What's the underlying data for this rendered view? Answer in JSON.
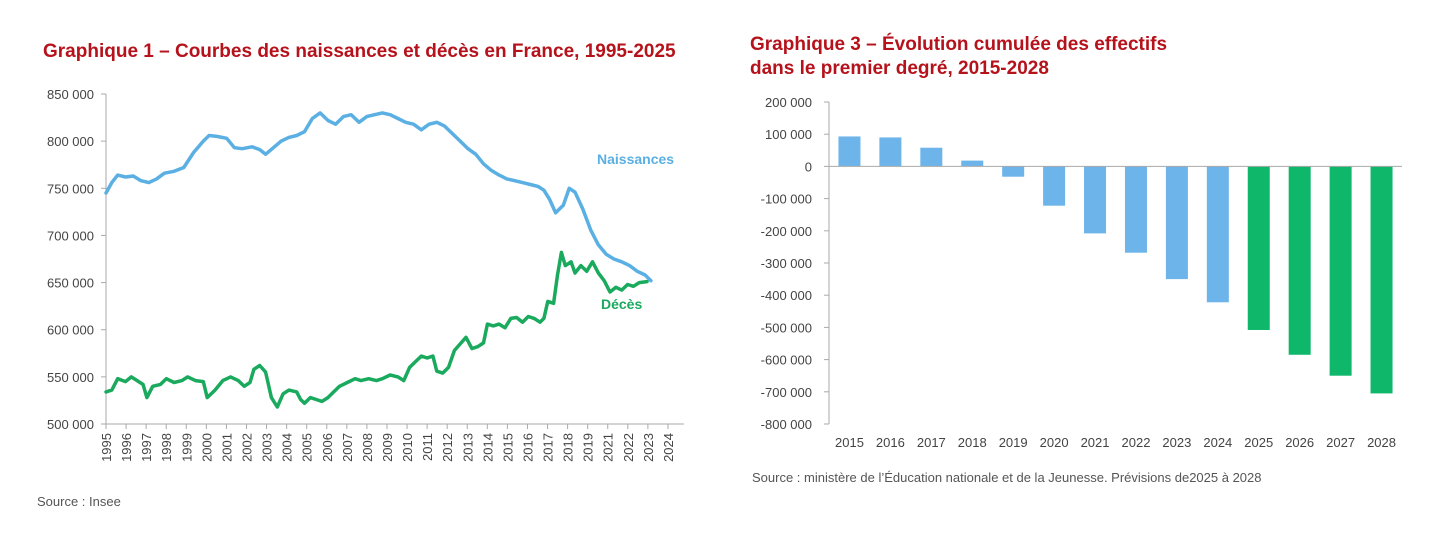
{
  "chart1": {
    "title": "Graphique 1 – Courbes des naissances et décès en France, 1995-2025",
    "source": "Source : Insee",
    "y_ticks": [
      "850 000",
      "800 000",
      "750 000",
      "700 000",
      "650 000",
      "600 000",
      "550 000",
      "500 000"
    ],
    "x_ticks": [
      "1995",
      "1996",
      "1997",
      "1998",
      "1999",
      "2000",
      "2001",
      "2002",
      "2003",
      "2004",
      "2005",
      "2006",
      "2007",
      "2008",
      "2009",
      "2010",
      "2011",
      "2012",
      "2013",
      "2014",
      "2015",
      "2016",
      "2017",
      "2018",
      "2019",
      "2021",
      "2022",
      "2023",
      "2024"
    ],
    "colors": {
      "naissances": "#5aafe3",
      "deces": "#1aaa5e",
      "axis": "#aaaaaa",
      "tick_text": "#444444"
    }
  },
  "chart3": {
    "title_line1": "Graphique 3 – Évolution cumulée des effectifs",
    "title_line2": "dans le premier degré, 2015-2028",
    "source": "Source : ministère de l’Éducation nationale et de la Jeunesse. Prévisions de2025 à 2028",
    "y_ticks": [
      "200 000",
      "100 000",
      "0",
      "-100 000",
      "-200 000",
      "-300 000",
      "-400 000",
      "-500 000",
      "-600 000",
      "-700 000",
      "-800 000"
    ],
    "colors": {
      "observed": "#6cb4ea",
      "forecast": "#0fb76b"
    }
  },
  "chart_data": [
    {
      "type": "line",
      "title": "Graphique 1 – Courbes des naissances et décès en France, 1995-2025",
      "xlabel": "",
      "ylabel": "",
      "ylim": [
        500000,
        850000
      ],
      "xlim": [
        1995,
        2024.7
      ],
      "grid": false,
      "series": [
        {
          "name": "Naissances",
          "points": [
            [
              1995.0,
              745000
            ],
            [
              1995.3,
              756000
            ],
            [
              1995.6,
              764000
            ],
            [
              1996.0,
              762000
            ],
            [
              1996.4,
              763000
            ],
            [
              1996.8,
              758000
            ],
            [
              1997.2,
              756000
            ],
            [
              1997.6,
              760000
            ],
            [
              1998.0,
              766000
            ],
            [
              1998.5,
              768000
            ],
            [
              1999.0,
              772000
            ],
            [
              1999.5,
              788000
            ],
            [
              2000.0,
              800000
            ],
            [
              2000.3,
              806000
            ],
            [
              2000.7,
              805000
            ],
            [
              2001.2,
              803000
            ],
            [
              2001.6,
              793000
            ],
            [
              2002.0,
              792000
            ],
            [
              2002.5,
              794000
            ],
            [
              2002.9,
              791000
            ],
            [
              2003.2,
              786000
            ],
            [
              2003.6,
              793000
            ],
            [
              2004.0,
              800000
            ],
            [
              2004.4,
              804000
            ],
            [
              2004.8,
              806000
            ],
            [
              2005.2,
              810000
            ],
            [
              2005.6,
              824000
            ],
            [
              2006.0,
              830000
            ],
            [
              2006.4,
              822000
            ],
            [
              2006.8,
              818000
            ],
            [
              2007.2,
              826000
            ],
            [
              2007.6,
              828000
            ],
            [
              2008.0,
              820000
            ],
            [
              2008.4,
              826000
            ],
            [
              2008.8,
              828000
            ],
            [
              2009.2,
              830000
            ],
            [
              2009.6,
              828000
            ],
            [
              2010.0,
              824000
            ],
            [
              2010.4,
              820000
            ],
            [
              2010.8,
              818000
            ],
            [
              2011.2,
              812000
            ],
            [
              2011.6,
              818000
            ],
            [
              2012.0,
              820000
            ],
            [
              2012.4,
              816000
            ],
            [
              2012.8,
              808000
            ],
            [
              2013.2,
              800000
            ],
            [
              2013.6,
              792000
            ],
            [
              2014.0,
              786000
            ],
            [
              2014.4,
              776000
            ],
            [
              2014.8,
              769000
            ],
            [
              2015.2,
              764000
            ],
            [
              2015.6,
              760000
            ],
            [
              2016.0,
              758000
            ],
            [
              2016.4,
              756000
            ],
            [
              2016.8,
              754000
            ],
            [
              2017.2,
              752000
            ],
            [
              2017.5,
              748000
            ],
            [
              2017.8,
              738000
            ],
            [
              2018.1,
              724000
            ],
            [
              2018.5,
              732000
            ],
            [
              2018.8,
              750000
            ],
            [
              2019.1,
              746000
            ],
            [
              2019.5,
              728000
            ],
            [
              2019.9,
              706000
            ],
            [
              2020.3,
              690000
            ],
            [
              2020.7,
              680000
            ],
            [
              2021.1,
              675000
            ],
            [
              2021.5,
              672000
            ],
            [
              2021.9,
              668000
            ],
            [
              2022.3,
              662000
            ],
            [
              2022.7,
              658000
            ],
            [
              2023.0,
              652000
            ]
          ]
        },
        {
          "name": "Décès",
          "points": [
            [
              1995.0,
              534000
            ],
            [
              1995.3,
              536000
            ],
            [
              1995.6,
              548000
            ],
            [
              1996.0,
              545000
            ],
            [
              1996.3,
              550000
            ],
            [
              1996.6,
              546000
            ],
            [
              1996.9,
              542000
            ],
            [
              1997.1,
              528000
            ],
            [
              1997.4,
              540000
            ],
            [
              1997.8,
              542000
            ],
            [
              1998.1,
              548000
            ],
            [
              1998.5,
              544000
            ],
            [
              1998.9,
              546000
            ],
            [
              1999.2,
              550000
            ],
            [
              1999.6,
              546000
            ],
            [
              2000.0,
              545000
            ],
            [
              2000.2,
              528000
            ],
            [
              2000.6,
              536000
            ],
            [
              2001.0,
              546000
            ],
            [
              2001.4,
              550000
            ],
            [
              2001.8,
              546000
            ],
            [
              2002.1,
              540000
            ],
            [
              2002.4,
              544000
            ],
            [
              2002.6,
              558000
            ],
            [
              2002.9,
              562000
            ],
            [
              2003.2,
              555000
            ],
            [
              2003.5,
              528000
            ],
            [
              2003.8,
              518000
            ],
            [
              2004.1,
              532000
            ],
            [
              2004.4,
              536000
            ],
            [
              2004.8,
              534000
            ],
            [
              2005.0,
              526000
            ],
            [
              2005.2,
              522000
            ],
            [
              2005.5,
              528000
            ],
            [
              2005.8,
              526000
            ],
            [
              2006.1,
              524000
            ],
            [
              2006.4,
              528000
            ],
            [
              2006.7,
              534000
            ],
            [
              2007.0,
              540000
            ],
            [
              2007.4,
              544000
            ],
            [
              2007.8,
              548000
            ],
            [
              2008.1,
              546000
            ],
            [
              2008.5,
              548000
            ],
            [
              2008.9,
              546000
            ],
            [
              2009.2,
              548000
            ],
            [
              2009.6,
              552000
            ],
            [
              2010.0,
              550000
            ],
            [
              2010.3,
              546000
            ],
            [
              2010.6,
              560000
            ],
            [
              2010.9,
              566000
            ],
            [
              2011.2,
              572000
            ],
            [
              2011.5,
              570000
            ],
            [
              2011.8,
              572000
            ],
            [
              2012.0,
              556000
            ],
            [
              2012.3,
              554000
            ],
            [
              2012.6,
              560000
            ],
            [
              2012.9,
              578000
            ],
            [
              2013.2,
              585000
            ],
            [
              2013.5,
              592000
            ],
            [
              2013.8,
              580000
            ],
            [
              2014.1,
              582000
            ],
            [
              2014.4,
              586000
            ],
            [
              2014.6,
              606000
            ],
            [
              2014.9,
              604000
            ],
            [
              2015.2,
              606000
            ],
            [
              2015.5,
              602000
            ],
            [
              2015.8,
              612000
            ],
            [
              2016.1,
              613000
            ],
            [
              2016.4,
              608000
            ],
            [
              2016.7,
              614000
            ],
            [
              2017.0,
              612000
            ],
            [
              2017.3,
              608000
            ],
            [
              2017.5,
              612000
            ],
            [
              2017.7,
              630000
            ],
            [
              2018.0,
              628000
            ],
            [
              2018.2,
              658000
            ],
            [
              2018.4,
              682000
            ],
            [
              2018.6,
              668000
            ],
            [
              2018.9,
              672000
            ],
            [
              2019.1,
              660000
            ],
            [
              2019.4,
              668000
            ],
            [
              2019.7,
              662000
            ],
            [
              2020.0,
              672000
            ],
            [
              2020.3,
              660000
            ],
            [
              2020.6,
              652000
            ],
            [
              2020.9,
              640000
            ],
            [
              2021.2,
              645000
            ],
            [
              2021.5,
              642000
            ],
            [
              2021.8,
              648000
            ],
            [
              2022.1,
              646000
            ],
            [
              2022.4,
              650000
            ],
            [
              2022.8,
              651000
            ]
          ]
        }
      ],
      "annotations": [
        {
          "text": "Naissances",
          "series": "Naissances"
        },
        {
          "text": "Décès",
          "series": "Décès"
        }
      ]
    },
    {
      "type": "bar",
      "title": "Graphique 3 – Évolution cumulée des effectifs dans le premier degré, 2015-2028",
      "xlabel": "",
      "ylabel": "",
      "ylim": [
        -800000,
        200000
      ],
      "grid": false,
      "categories": [
        "2015",
        "2016",
        "2017",
        "2018",
        "2019",
        "2020",
        "2021",
        "2022",
        "2023",
        "2024",
        "2025",
        "2026",
        "2027",
        "2028"
      ],
      "values": [
        93000,
        90000,
        58000,
        18000,
        -32000,
        -122000,
        -208000,
        -268000,
        -350000,
        -422000,
        -508000,
        -585000,
        -650000,
        -705000
      ],
      "forecast_from": "2025"
    }
  ]
}
